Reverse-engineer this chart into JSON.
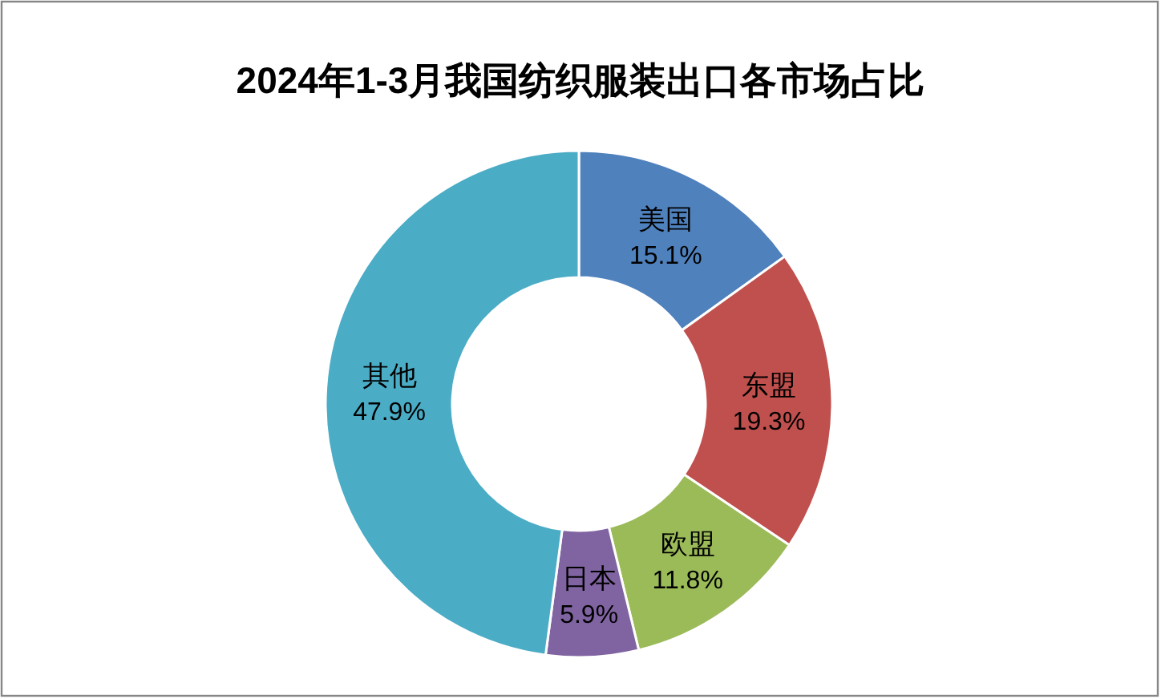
{
  "chart_data": {
    "type": "donut",
    "title": "2024年1-3月我国纺织服装出口各市场占比",
    "categories": [
      "美国",
      "东盟",
      "欧盟",
      "日本",
      "其他"
    ],
    "values": [
      15.1,
      19.3,
      11.8,
      5.9,
      47.9
    ],
    "colors": [
      "#4f81bd",
      "#c0504d",
      "#9bbb59",
      "#8064a2",
      "#4bacc6"
    ],
    "value_labels": [
      "15.1%",
      "19.3%",
      "11.8%",
      "5.9%",
      "47.9%"
    ]
  }
}
